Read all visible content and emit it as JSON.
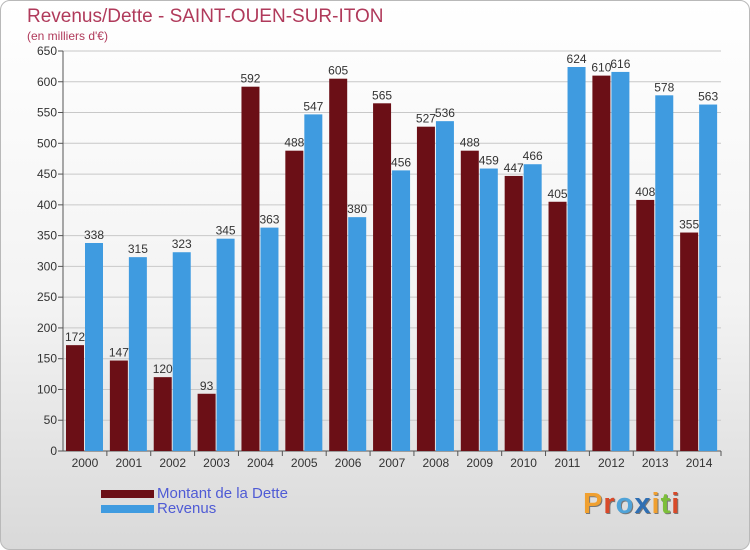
{
  "title": "Revenus/Dette - SAINT-OUEN-SUR-ITON",
  "subtitle": "(en milliers d'€)",
  "logo": {
    "text": "Proxiti",
    "letters": [
      "P",
      "r",
      "o",
      "x",
      "i",
      "t",
      "i"
    ],
    "colors": [
      "#f0a030",
      "#d84a2a",
      "#4fa3d8",
      "#2f6fb3",
      "#f0a030",
      "#7cbf3a",
      "#d84a2a"
    ]
  },
  "colors": {
    "dette": "#6b0f16",
    "revenus": "#3f9be0",
    "grid": "#c8c8c8",
    "axis_text": "#333333"
  },
  "chart_data": {
    "type": "bar",
    "categories": [
      "2000",
      "2001",
      "2002",
      "2003",
      "2004",
      "2005",
      "2006",
      "2007",
      "2008",
      "2009",
      "2010",
      "2011",
      "2012",
      "2013",
      "2014"
    ],
    "series": [
      {
        "name": "Montant de la Dette",
        "values": [
          172,
          147,
          120,
          93,
          592,
          488,
          605,
          565,
          527,
          488,
          447,
          405,
          610,
          408,
          355
        ]
      },
      {
        "name": "Revenus",
        "values": [
          338,
          315,
          323,
          345,
          363,
          547,
          380,
          456,
          536,
          459,
          466,
          624,
          616,
          578,
          563
        ]
      }
    ],
    "ylim": [
      0,
      650
    ],
    "yticks": [
      0,
      50,
      100,
      150,
      200,
      250,
      300,
      350,
      400,
      450,
      500,
      550,
      600,
      650
    ],
    "grid": true,
    "legend": "bottom-left"
  }
}
